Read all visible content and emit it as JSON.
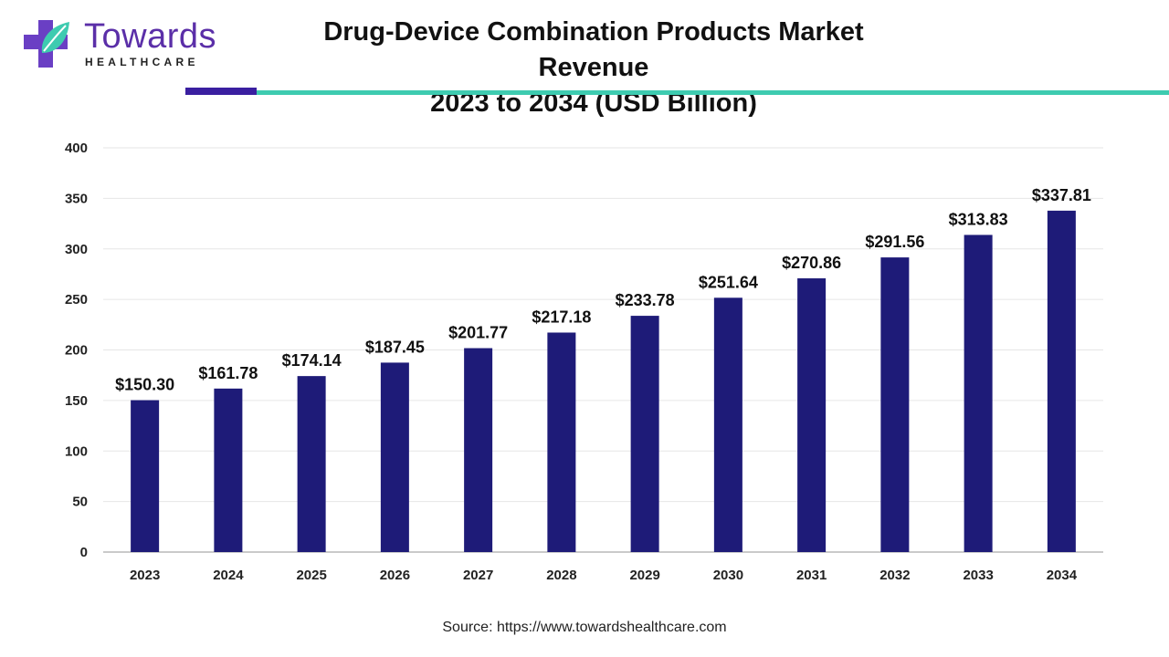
{
  "brand": {
    "name": "Towards",
    "tagline": "HEALTHCARE",
    "colors": {
      "purple": "#5b2fa8",
      "teal": "#3ecbb0",
      "bar": "#1e1b78"
    },
    "icon": "cross-leaf-logo-icon"
  },
  "title_line1": "Drug-Device Combination Products Market Revenue",
  "title_line2": "2023 to 2034 (USD Billion)",
  "source": "Source: https://www.towardshealthcare.com",
  "chart_data": {
    "type": "bar",
    "categories": [
      "2023",
      "2024",
      "2025",
      "2026",
      "2027",
      "2028",
      "2029",
      "2030",
      "2031",
      "2032",
      "2033",
      "2034"
    ],
    "values": [
      150.3,
      161.78,
      174.14,
      187.45,
      201.77,
      217.18,
      233.78,
      251.64,
      270.86,
      291.56,
      313.83,
      337.81
    ],
    "value_labels": [
      "$150.30",
      "$161.78",
      "$174.14",
      "$187.45",
      "$201.77",
      "$217.18",
      "$233.78",
      "$251.64",
      "$270.86",
      "$291.56",
      "$313.83",
      "$337.81"
    ],
    "title": "Drug-Device Combination Products Market Revenue 2023 to 2034 (USD Billion)",
    "xlabel": "",
    "ylabel": "",
    "ylim": [
      0,
      400
    ],
    "yticks": [
      0,
      50,
      100,
      150,
      200,
      250,
      300,
      350,
      400
    ],
    "grid": true,
    "legend": "none",
    "bar_color": "#1e1b78"
  }
}
